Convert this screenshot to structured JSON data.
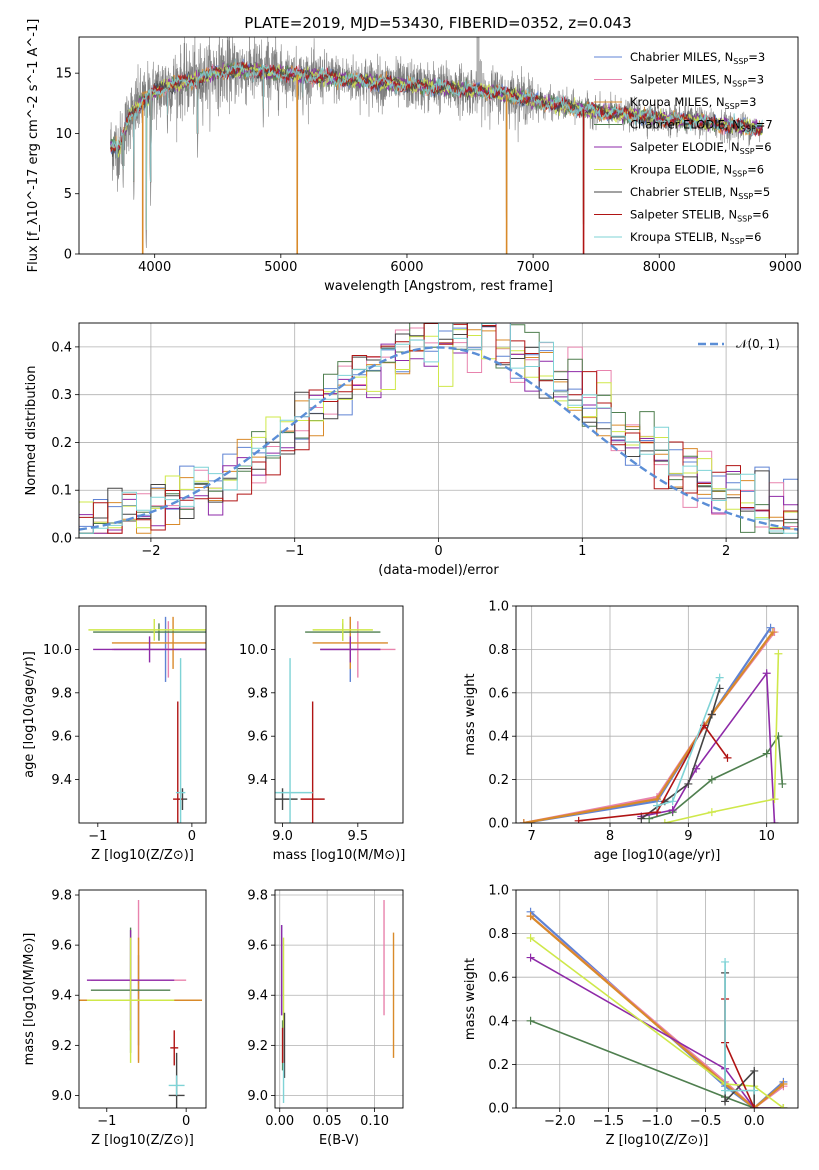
{
  "figure": {
    "title": "PLATE=2019, MJD=53430, FIBERID=0352, z=0.043"
  },
  "series": [
    {
      "name": "Chabrier MILES, N",
      "sub": "SSP",
      "tail": "=3",
      "color": "#5f83d4"
    },
    {
      "name": "Salpeter MILES, N",
      "sub": "SSP",
      "tail": "=3",
      "color": "#e883ad"
    },
    {
      "name": "Kroupa MILES, N",
      "sub": "SSP",
      "tail": "=3",
      "color": "#d98a2a"
    },
    {
      "name": "Chabrier ELODIE, N",
      "sub": "SSP",
      "tail": "=7",
      "color": "#4f7f4f"
    },
    {
      "name": "Salpeter ELODIE, N",
      "sub": "SSP",
      "tail": "=6",
      "color": "#8e2aa8"
    },
    {
      "name": "Kroupa ELODIE, N",
      "sub": "SSP",
      "tail": "=6",
      "color": "#cfe84a"
    },
    {
      "name": "Chabrier STELIB, N",
      "sub": "SSP",
      "tail": "=5",
      "color": "#444444"
    },
    {
      "name": "Salpeter STELIB, N",
      "sub": "SSP",
      "tail": "=6",
      "color": "#b01414"
    },
    {
      "name": "Kroupa STELIB, N",
      "sub": "SSP",
      "tail": "=6",
      "color": "#7fd3d6"
    }
  ],
  "chart_data": [
    {
      "id": "spectrum",
      "type": "line",
      "xlabel": "wavelength [Angstrom, rest frame]",
      "ylabel": "Flux [f_λ10^-17 erg cm^-2 s^-1 A^-1]",
      "xlim": [
        3400,
        9100
      ],
      "ylim": [
        0,
        18
      ],
      "xticks": [
        4000,
        5000,
        6000,
        7000,
        8000,
        9000
      ],
      "yticks": [
        0,
        5,
        10,
        15
      ],
      "observed_color": "#808080",
      "continuum": [
        [
          3650,
          9.0
        ],
        [
          3720,
          8.8
        ],
        [
          3800,
          11.5
        ],
        [
          3900,
          12.6
        ],
        [
          4000,
          13.4
        ],
        [
          4100,
          14.0
        ],
        [
          4300,
          14.4
        ],
        [
          4500,
          15.1
        ],
        [
          4700,
          15.3
        ],
        [
          4900,
          15.1
        ],
        [
          5100,
          14.9
        ],
        [
          5300,
          14.7
        ],
        [
          5500,
          14.5
        ],
        [
          5800,
          14.2
        ],
        [
          6000,
          14.0
        ],
        [
          6300,
          13.8
        ],
        [
          6500,
          13.6
        ],
        [
          6700,
          13.4
        ],
        [
          6900,
          13.0
        ],
        [
          7100,
          12.5
        ],
        [
          7300,
          12.2
        ],
        [
          7500,
          11.8
        ],
        [
          7800,
          11.5
        ],
        [
          8000,
          11.2
        ],
        [
          8300,
          11.0
        ],
        [
          8500,
          10.7
        ],
        [
          8700,
          10.5
        ],
        [
          8820,
          10.4
        ]
      ],
      "absorption": [
        [
          3933,
          0.0
        ],
        [
          3968,
          4.0
        ],
        [
          4101,
          9.5
        ],
        [
          4340,
          8.0
        ],
        [
          5130,
          0.0
        ],
        [
          6790,
          0.0
        ],
        [
          7400,
          0.5
        ],
        [
          3700,
          6.0
        ],
        [
          3750,
          5.0
        ],
        [
          3835,
          4.0
        ],
        [
          4861,
          10.0
        ],
        [
          5175,
          11.0
        ],
        [
          8543,
          9.2
        ]
      ],
      "emission": [
        [
          6563,
          18.0
        ],
        [
          6583,
          16.0
        ],
        [
          4102,
          14.8
        ],
        [
          4340,
          15.5
        ]
      ]
    },
    {
      "id": "residual-hist",
      "type": "area",
      "xlabel": "(data-model)/error",
      "ylabel": "Normed distribution",
      "xlim": [
        -2.5,
        2.5
      ],
      "ylim": [
        0,
        0.45
      ],
      "xticks": [
        -2,
        -1,
        0,
        1,
        2
      ],
      "yticks": [
        0.0,
        0.1,
        0.2,
        0.3,
        0.4
      ],
      "grid": true,
      "reference": {
        "name": "𝒩(0, 1)",
        "color": "#5b8ed6"
      }
    },
    {
      "id": "age-vs-z",
      "type": "scatter",
      "xlabel": "Z [log10(Z/Z⊙)]",
      "ylabel": "age  [log10(age/yr)]",
      "xlim": [
        -1.2,
        0.15
      ],
      "ylim": [
        9.2,
        10.2
      ],
      "xticks": [
        -1,
        0
      ],
      "yticks": [
        9.4,
        9.6,
        9.8,
        10.0
      ],
      "points": [
        {
          "x": -0.28,
          "y": 10.0,
          "xerr": 0.55,
          "yerr": 0.15
        },
        {
          "x": -0.25,
          "y": 10.0,
          "xerr": 0.6,
          "yerr": 0.13
        },
        {
          "x": -0.2,
          "y": 10.03,
          "xerr": 0.65,
          "yerr": 0.12
        },
        {
          "x": -0.35,
          "y": 10.08,
          "xerr": 0.7,
          "yerr": 0.04
        },
        {
          "x": -0.45,
          "y": 10.0,
          "xerr": 0.6,
          "yerr": 0.06
        },
        {
          "x": -0.4,
          "y": 10.09,
          "xerr": 0.7,
          "yerr": 0.05
        },
        {
          "x": -0.1,
          "y": 9.31,
          "xerr": 0.05,
          "yerr": 0.05
        },
        {
          "x": -0.15,
          "y": 9.31,
          "xerr": 0.05,
          "yerr": 0.45
        },
        {
          "x": -0.12,
          "y": 9.34,
          "xerr": 0.05,
          "yerr": 0.62
        }
      ]
    },
    {
      "id": "age-vs-mass",
      "type": "scatter",
      "xlabel": "mass [log10(M/M⊙)]",
      "ylabel": "",
      "xlim": [
        8.95,
        9.8
      ],
      "ylim": [
        9.2,
        10.2
      ],
      "xticks": [
        9.0,
        9.5
      ],
      "yticks": [
        9.4,
        9.6,
        9.8,
        10.0
      ],
      "points": [
        {
          "x": 9.45,
          "y": 10.0,
          "xerr": 0.2,
          "yerr": 0.15
        },
        {
          "x": 9.5,
          "y": 10.0,
          "xerr": 0.25,
          "yerr": 0.13
        },
        {
          "x": 9.45,
          "y": 10.03,
          "xerr": 0.25,
          "yerr": 0.12
        },
        {
          "x": 9.4,
          "y": 10.08,
          "xerr": 0.25,
          "yerr": 0.04
        },
        {
          "x": 9.45,
          "y": 10.0,
          "xerr": 0.2,
          "yerr": 0.06
        },
        {
          "x": 9.4,
          "y": 10.09,
          "xerr": 0.2,
          "yerr": 0.05
        },
        {
          "x": 9.0,
          "y": 9.31,
          "xerr": 0.1,
          "yerr": 0.05
        },
        {
          "x": 9.2,
          "y": 9.31,
          "xerr": 0.08,
          "yerr": 0.45
        },
        {
          "x": 9.05,
          "y": 9.34,
          "xerr": 0.15,
          "yerr": 0.62
        }
      ]
    },
    {
      "id": "weight-vs-age",
      "type": "line",
      "xlabel": "age  [log10(age/yr)]",
      "ylabel": "mass weight",
      "xlim": [
        6.8,
        10.4
      ],
      "ylim": [
        0,
        1.0
      ],
      "xticks": [
        7,
        8,
        9,
        10
      ],
      "yticks": [
        0.0,
        0.2,
        0.4,
        0.6,
        0.8,
        1.0
      ],
      "grid": true,
      "lines": [
        [
          [
            6.9,
            0.0
          ],
          [
            8.6,
            0.1
          ],
          [
            9.3,
            0.5
          ],
          [
            10.05,
            0.9
          ]
        ],
        [
          [
            6.9,
            0.0
          ],
          [
            8.6,
            0.12
          ],
          [
            9.3,
            0.5
          ],
          [
            10.1,
            0.88
          ]
        ],
        [
          [
            6.9,
            0.0
          ],
          [
            8.6,
            0.11
          ],
          [
            9.3,
            0.5
          ],
          [
            10.08,
            0.88
          ]
        ],
        [
          [
            8.5,
            0.02
          ],
          [
            8.8,
            0.05
          ],
          [
            9.3,
            0.2
          ],
          [
            10.0,
            0.32
          ],
          [
            10.15,
            0.4
          ],
          [
            10.2,
            0.18
          ]
        ],
        [
          [
            8.4,
            0.03
          ],
          [
            8.8,
            0.06
          ],
          [
            9.1,
            0.25
          ],
          [
            10.0,
            0.69
          ],
          [
            10.1,
            0.0
          ]
        ],
        [
          [
            8.7,
            0.0
          ],
          [
            9.3,
            0.05
          ],
          [
            10.1,
            0.11
          ],
          [
            10.15,
            0.78
          ]
        ],
        [
          [
            8.4,
            0.02
          ],
          [
            8.7,
            0.1
          ],
          [
            9.0,
            0.18
          ],
          [
            9.3,
            0.5
          ],
          [
            9.4,
            0.62
          ]
        ],
        [
          [
            7.6,
            0.01
          ],
          [
            8.6,
            0.05
          ],
          [
            9.2,
            0.45
          ],
          [
            9.5,
            0.3
          ]
        ],
        [
          [
            8.6,
            0.08
          ],
          [
            8.8,
            0.1
          ],
          [
            9.4,
            0.67
          ]
        ]
      ]
    },
    {
      "id": "mass-vs-z",
      "type": "scatter",
      "xlabel": "Z [log10(Z/Z⊙)]",
      "ylabel": "mass [log10(M/M⊙)]",
      "xlim": [
        -1.35,
        0.25
      ],
      "ylim": [
        8.95,
        9.82
      ],
      "xticks": [
        -1,
        0
      ],
      "yticks": [
        9.0,
        9.2,
        9.4,
        9.6,
        9.8
      ],
      "points": [
        {
          "x": -0.6,
          "y": 9.38,
          "xerr": 0.5,
          "yerr": 0.18
        },
        {
          "x": -0.6,
          "y": 9.46,
          "xerr": 0.6,
          "yerr": 0.32
        },
        {
          "x": -0.6,
          "y": 9.38,
          "xerr": 0.8,
          "yerr": 0.25
        },
        {
          "x": -0.7,
          "y": 9.42,
          "xerr": 0.5,
          "yerr": 0.25
        },
        {
          "x": -0.7,
          "y": 9.46,
          "xerr": 0.55,
          "yerr": 0.2
        },
        {
          "x": -0.7,
          "y": 9.38,
          "xerr": 0.55,
          "yerr": 0.25
        },
        {
          "x": -0.12,
          "y": 9.0,
          "xerr": 0.1,
          "yerr": 0.17
        },
        {
          "x": -0.15,
          "y": 9.19,
          "xerr": 0.05,
          "yerr": 0.07
        },
        {
          "x": -0.12,
          "y": 9.04,
          "xerr": 0.1,
          "yerr": 0.04
        }
      ]
    },
    {
      "id": "mass-vs-ebv",
      "type": "scatter",
      "xlabel": "E(B-V)",
      "ylabel": "",
      "xlim": [
        -0.005,
        0.13
      ],
      "ylim": [
        8.95,
        9.82
      ],
      "xticks": [
        0.0,
        0.05,
        0.1
      ],
      "yticks": [
        9.0,
        9.2,
        9.4,
        9.6,
        9.8
      ],
      "grid": true,
      "points": [
        {
          "x": 0.002,
          "y": 9.5,
          "xerr": 0,
          "yerr": 0.18
        },
        {
          "x": 0.11,
          "y": 9.55,
          "xerr": 0,
          "yerr": 0.23
        },
        {
          "x": 0.12,
          "y": 9.4,
          "xerr": 0,
          "yerr": 0.25
        },
        {
          "x": 0.003,
          "y": 9.2,
          "xerr": 0,
          "yerr": 0.1
        },
        {
          "x": 0.002,
          "y": 9.5,
          "xerr": 0,
          "yerr": 0.18
        },
        {
          "x": 0.004,
          "y": 9.45,
          "xerr": 0,
          "yerr": 0.18
        },
        {
          "x": 0.005,
          "y": 9.2,
          "xerr": 0,
          "yerr": 0.13
        },
        {
          "x": 0.003,
          "y": 9.2,
          "xerr": 0,
          "yerr": 0.07
        },
        {
          "x": 0.004,
          "y": 9.05,
          "xerr": 0,
          "yerr": 0.08
        }
      ]
    },
    {
      "id": "weight-vs-z",
      "type": "line",
      "xlabel": "Z [log10(Z/Z⊙)]",
      "ylabel": "mass weight",
      "xlim": [
        -2.45,
        0.45
      ],
      "ylim": [
        0,
        1.0
      ],
      "xticks": [
        -2.0,
        -1.5,
        -1.0,
        -0.5,
        0.0
      ],
      "yticks": [
        0.0,
        0.2,
        0.4,
        0.6,
        0.8,
        1.0
      ],
      "grid": true,
      "lines": [
        [
          [
            -2.3,
            0.9
          ],
          [
            -0.3,
            0.1
          ],
          [
            0.0,
            0.0
          ],
          [
            0.3,
            0.12
          ]
        ],
        [
          [
            -2.3,
            0.88
          ],
          [
            -0.3,
            0.12
          ],
          [
            0.0,
            0.0
          ],
          [
            0.3,
            0.1
          ]
        ],
        [
          [
            -2.3,
            0.88
          ],
          [
            -0.3,
            0.11
          ],
          [
            0.0,
            0.0
          ],
          [
            0.3,
            0.11
          ]
        ],
        [
          [
            -2.3,
            0.4
          ],
          [
            -0.3,
            0.05
          ],
          [
            0.0,
            0.0
          ],
          [
            0.3,
            0.0
          ]
        ],
        [
          [
            -2.3,
            0.69
          ],
          [
            -0.3,
            0.18
          ],
          [
            0.0,
            0.0
          ],
          [
            0.3,
            0.0
          ]
        ],
        [
          [
            -2.3,
            0.78
          ],
          [
            -0.3,
            0.11
          ],
          [
            0.0,
            0.1
          ],
          [
            0.3,
            0.0
          ]
        ],
        [
          [
            -0.3,
            0.62
          ],
          [
            -0.3,
            0.03
          ],
          [
            0.0,
            0.17
          ],
          [
            0.0,
            0.0
          ]
        ],
        [
          [
            -0.3,
            0.5
          ],
          [
            -0.3,
            0.3
          ],
          [
            0.0,
            0.0
          ]
        ],
        [
          [
            -0.3,
            0.67
          ],
          [
            -0.3,
            0.08
          ],
          [
            0.0,
            0.08
          ]
        ]
      ]
    }
  ]
}
